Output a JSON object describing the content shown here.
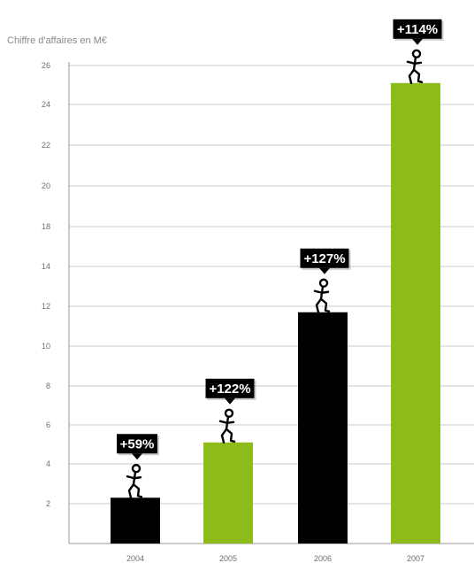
{
  "chart_data": {
    "type": "bar",
    "ylabel": "Chiffre d'affaires en M€",
    "categories": [
      "2004",
      "2005",
      "2006",
      "2007"
    ],
    "values": [
      2.3,
      5.1,
      11.7,
      25.1
    ],
    "growth_labels": [
      "+59%",
      "+122%",
      "+127%",
      "+114%"
    ],
    "bar_colors": [
      "#000000",
      "#8dbb1a",
      "#000000",
      "#8dbb1a"
    ],
    "y_ticks": [
      "2",
      "4",
      "6",
      "8",
      "10",
      "12",
      "14",
      "18",
      "20",
      "22",
      "24",
      "26"
    ],
    "ylim": [
      0,
      26
    ],
    "grid": true,
    "annotation_icon": "climbing-stick-figure-icon"
  }
}
